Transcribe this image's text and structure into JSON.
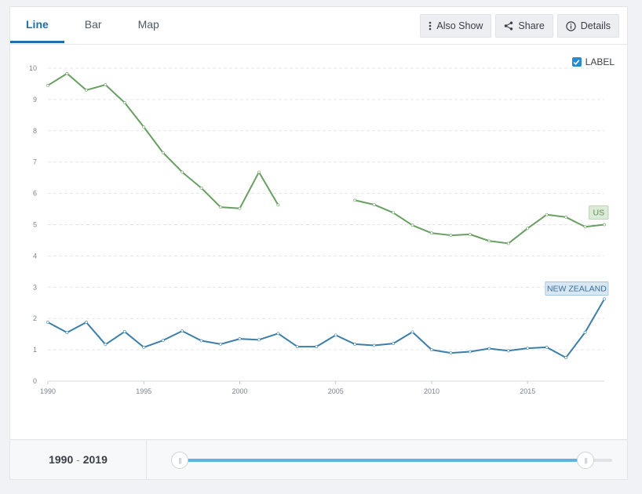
{
  "tabs": [
    {
      "label": "Line",
      "active": true
    },
    {
      "label": "Bar",
      "active": false
    },
    {
      "label": "Map",
      "active": false
    }
  ],
  "actions": {
    "also_show": "Also Show",
    "share": "Share",
    "details": "Details"
  },
  "label_toggle": {
    "text": "LABEL",
    "checked": true
  },
  "footer": {
    "start_year": "1990",
    "separator": "-",
    "end_year": "2019"
  },
  "slider": {
    "min": 1990,
    "max": 2019,
    "start": 1990,
    "end": 2019
  },
  "colors": {
    "us": "#6a9f63",
    "nz": "#3b7fa8",
    "accent": "#1f6fa8"
  },
  "chart_data": {
    "type": "line",
    "xlim": [
      1990,
      2019
    ],
    "ylim": [
      0,
      10
    ],
    "x_ticks": [
      1990,
      1995,
      2000,
      2005,
      2010,
      2015
    ],
    "y_ticks": [
      0,
      1,
      2,
      3,
      4,
      5,
      6,
      7,
      8,
      9,
      10
    ],
    "grid": true,
    "series": [
      {
        "name": "US",
        "color": "#6a9f63",
        "points": [
          [
            1990,
            9.45
          ],
          [
            1991,
            9.83
          ],
          [
            1992,
            9.3
          ],
          [
            1993,
            9.47
          ],
          [
            1994,
            8.9
          ],
          [
            1995,
            8.12
          ],
          [
            1996,
            7.3
          ],
          [
            1997,
            6.68
          ],
          [
            1998,
            6.17
          ],
          [
            1999,
            5.56
          ],
          [
            2000,
            5.52
          ],
          [
            2001,
            6.68
          ],
          [
            2002,
            5.63
          ],
          [
            2003,
            null
          ],
          [
            2004,
            null
          ],
          [
            2005,
            null
          ],
          [
            2006,
            5.78
          ],
          [
            2007,
            5.64
          ],
          [
            2008,
            5.38
          ],
          [
            2009,
            4.98
          ],
          [
            2010,
            4.73
          ],
          [
            2011,
            4.66
          ],
          [
            2012,
            4.69
          ],
          [
            2013,
            4.48
          ],
          [
            2014,
            4.4
          ],
          [
            2015,
            4.88
          ],
          [
            2016,
            5.32
          ],
          [
            2017,
            5.24
          ],
          [
            2018,
            4.93
          ],
          [
            2019,
            5.0
          ]
        ]
      },
      {
        "name": "NEW ZEALAND",
        "color": "#3b7fa8",
        "points": [
          [
            1990,
            1.88
          ],
          [
            1991,
            1.55
          ],
          [
            1992,
            1.88
          ],
          [
            1993,
            1.17
          ],
          [
            1994,
            1.58
          ],
          [
            1995,
            1.08
          ],
          [
            1996,
            1.3
          ],
          [
            1997,
            1.6
          ],
          [
            1998,
            1.29
          ],
          [
            1999,
            1.18
          ],
          [
            2000,
            1.35
          ],
          [
            2001,
            1.32
          ],
          [
            2002,
            1.52
          ],
          [
            2003,
            1.1
          ],
          [
            2004,
            1.1
          ],
          [
            2005,
            1.47
          ],
          [
            2006,
            1.18
          ],
          [
            2007,
            1.14
          ],
          [
            2008,
            1.2
          ],
          [
            2009,
            1.57
          ],
          [
            2010,
            1.0
          ],
          [
            2011,
            0.9
          ],
          [
            2012,
            0.94
          ],
          [
            2013,
            1.04
          ],
          [
            2014,
            0.97
          ],
          [
            2015,
            1.05
          ],
          [
            2016,
            1.08
          ],
          [
            2017,
            0.75
          ],
          [
            2018,
            1.56
          ],
          [
            2019,
            2.62
          ]
        ]
      }
    ]
  }
}
